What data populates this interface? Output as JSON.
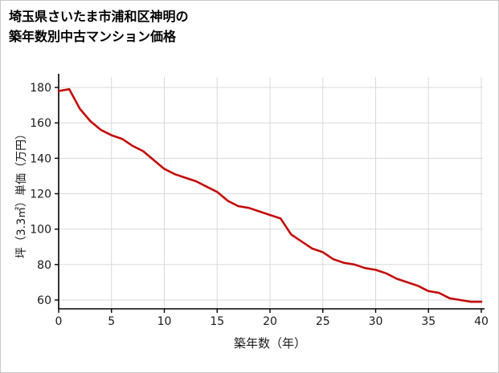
{
  "page": {
    "title_line1": "埼玉県さいたま市浦和区神明の",
    "title_line2": "築年数別中古マンション価格"
  },
  "chart_data": {
    "type": "line",
    "title": "埼玉県さいたま市浦和区神明の築年数別中古マンション価格",
    "xlabel": "築年数（年）",
    "ylabel": "坪（3.3㎡）単価（万円）",
    "xlim": [
      0,
      40
    ],
    "ylim": [
      55,
      185
    ],
    "x_ticks": [
      0,
      5,
      10,
      15,
      20,
      25,
      30,
      35,
      40
    ],
    "y_ticks": [
      60,
      80,
      100,
      120,
      140,
      160,
      180
    ],
    "grid": true,
    "legend": "none",
    "line_color": "#c40a0a",
    "axis_color": "#000000",
    "grid_color": "#d9d9d9",
    "x": [
      0,
      1,
      2,
      3,
      4,
      5,
      6,
      7,
      8,
      9,
      10,
      11,
      12,
      13,
      14,
      15,
      16,
      17,
      18,
      19,
      20,
      21,
      22,
      23,
      24,
      25,
      26,
      27,
      28,
      29,
      30,
      31,
      32,
      33,
      34,
      35,
      36,
      37,
      38,
      39,
      40
    ],
    "series": [
      {
        "name": "坪単価（万円）",
        "values": [
          178,
          179,
          168,
          161,
          156,
          153,
          151,
          147,
          144,
          139,
          134,
          131,
          129,
          127,
          124,
          121,
          116,
          113,
          112,
          110,
          108,
          106,
          97,
          93,
          89,
          87,
          83,
          81,
          80,
          78,
          77,
          75,
          72,
          70,
          68,
          65,
          64,
          61,
          60,
          59,
          59
        ]
      }
    ]
  }
}
